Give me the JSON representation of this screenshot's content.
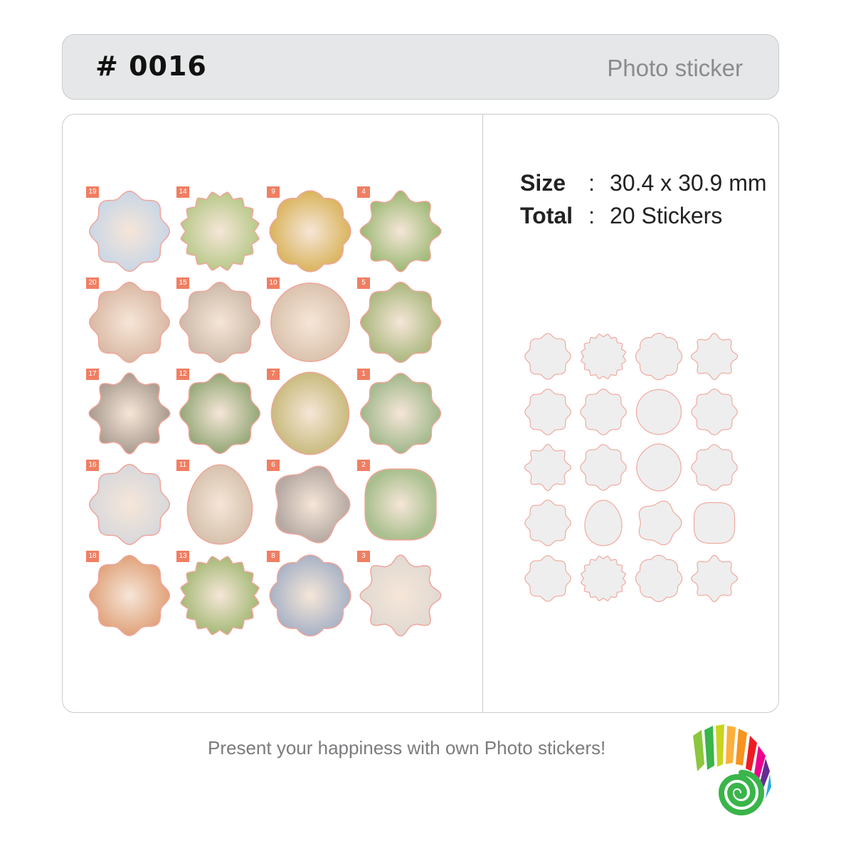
{
  "header": {
    "code": "# 0016",
    "category": "Photo sticker"
  },
  "specs": {
    "size_label": "Size",
    "size_colon": ":",
    "size_value": "30.4 x 30.9 mm",
    "total_label": "Total",
    "total_colon": ":",
    "total_value": "20 Stickers"
  },
  "stickers": [
    {
      "num": "19",
      "shape": "scallop",
      "color": "#c9d6e6"
    },
    {
      "num": "14",
      "shape": "zigzag",
      "color": "#b8c98a"
    },
    {
      "num": "9",
      "shape": "flower",
      "color": "#d9b45c"
    },
    {
      "num": "4",
      "shape": "star8",
      "color": "#9bb873"
    },
    {
      "num": "20",
      "shape": "scallop",
      "color": "#d9b8a4"
    },
    {
      "num": "15",
      "shape": "scallop",
      "color": "#cbb9a8"
    },
    {
      "num": "10",
      "shape": "circle",
      "color": "#dac3ae"
    },
    {
      "num": "5",
      "shape": "scallop",
      "color": "#a9b77d"
    },
    {
      "num": "17",
      "shape": "star8",
      "color": "#a89a8e"
    },
    {
      "num": "12",
      "shape": "scallop",
      "color": "#93a776"
    },
    {
      "num": "7",
      "shape": "lemon",
      "color": "#c8bb7d"
    },
    {
      "num": "1",
      "shape": "scallop",
      "color": "#9fb78a"
    },
    {
      "num": "16",
      "shape": "scallop",
      "color": "#d7d8dc"
    },
    {
      "num": "11",
      "shape": "egg",
      "color": "#d6c2ae"
    },
    {
      "num": "6",
      "shape": "star5",
      "color": "#b5a9a2"
    },
    {
      "num": "2",
      "shape": "frame",
      "color": "#a9bf8e"
    },
    {
      "num": "18",
      "shape": "scallop",
      "color": "#e0a27a"
    },
    {
      "num": "13",
      "shape": "zigzag",
      "color": "#a6ba78"
    },
    {
      "num": "8",
      "shape": "flower",
      "color": "#a7b2c6"
    },
    {
      "num": "3",
      "shape": "star8",
      "color": "#e0d9d2"
    }
  ],
  "template_shapes": [
    "scallop",
    "zigzag",
    "flower",
    "star8",
    "scallop",
    "scallop",
    "circle",
    "scallop",
    "star8",
    "scallop",
    "lemon",
    "scallop",
    "scallop",
    "egg",
    "star5",
    "frame",
    "scallop",
    "zigzag",
    "flower",
    "star8"
  ],
  "footer": {
    "tagline": "Present your happiness with own Photo stickers!"
  },
  "colors": {
    "badge": "#f07e62",
    "outline": "#f0a59a",
    "template_fill": "#eeeeee"
  }
}
